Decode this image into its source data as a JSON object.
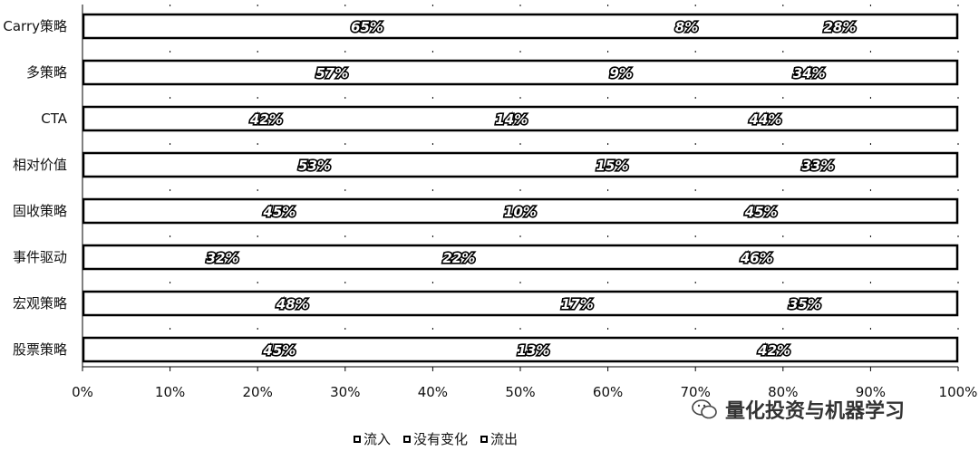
{
  "chart_data": {
    "type": "bar",
    "stacked": true,
    "orientation": "horizontal",
    "categories": [
      "Carry策略",
      "多策略",
      "CTA",
      "相对价值",
      "固收策略",
      "事件驱动",
      "宏观策略",
      "股票策略"
    ],
    "series": [
      {
        "name": "流入",
        "values": [
          65,
          57,
          42,
          53,
          45,
          32,
          48,
          45
        ],
        "labels": [
          "65%",
          "57%",
          "42%",
          "53%",
          "45%",
          "32%",
          "48%",
          "45%"
        ]
      },
      {
        "name": "没有变化",
        "values": [
          8,
          9,
          14,
          15,
          10,
          22,
          17,
          13
        ],
        "labels": [
          "8%",
          "9%",
          "14%",
          "15%",
          "10%",
          "22%",
          "17%",
          "13%"
        ]
      },
      {
        "name": "流出",
        "values": [
          28,
          34,
          44,
          33,
          45,
          46,
          35,
          42
        ],
        "labels": [
          "28%",
          "34%",
          "44%",
          "33%",
          "45%",
          "46%",
          "35%",
          "42%"
        ]
      }
    ],
    "xlim": [
      0,
      100
    ],
    "x_ticks": [
      "0%",
      "10%",
      "20%",
      "30%",
      "40%",
      "50%",
      "60%",
      "70%",
      "80%",
      "90%",
      "100%"
    ],
    "legend_position": "bottom"
  },
  "watermark": {
    "text": "量化投资与机器学习",
    "icon": "wechat-icon"
  }
}
